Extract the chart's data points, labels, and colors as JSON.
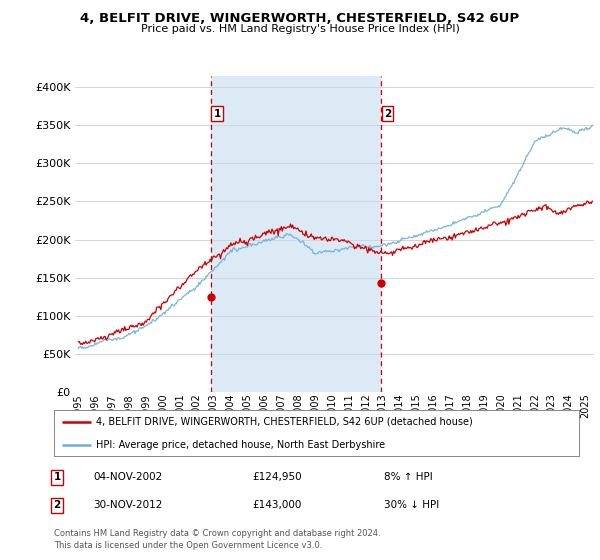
{
  "title": "4, BELFIT DRIVE, WINGERWORTH, CHESTERFIELD, S42 6UP",
  "subtitle": "Price paid vs. HM Land Registry's House Price Index (HPI)",
  "ylabel_ticks": [
    "£0",
    "£50K",
    "£100K",
    "£150K",
    "£200K",
    "£250K",
    "£300K",
    "£350K",
    "£400K"
  ],
  "ytick_values": [
    0,
    50000,
    100000,
    150000,
    200000,
    250000,
    300000,
    350000,
    400000
  ],
  "ylim": [
    0,
    415000
  ],
  "xlim_start": 1994.8,
  "xlim_end": 2025.5,
  "purchase1_x": 2002.84,
  "purchase1_y": 124950,
  "purchase2_x": 2012.92,
  "purchase2_y": 143000,
  "legend_line1": "4, BELFIT DRIVE, WINGERWORTH, CHESTERFIELD, S42 6UP (detached house)",
  "legend_line2": "HPI: Average price, detached house, North East Derbyshire",
  "ann1_date": "04-NOV-2002",
  "ann1_price": "£124,950",
  "ann1_hpi": "8% ↑ HPI",
  "ann2_date": "30-NOV-2012",
  "ann2_price": "£143,000",
  "ann2_hpi": "30% ↓ HPI",
  "footer": "Contains HM Land Registry data © Crown copyright and database right 2024.\nThis data is licensed under the Open Government Licence v3.0.",
  "hpi_color": "#6baed6",
  "hpi_shade": "#c6dcf0",
  "price_color": "#cc0000",
  "vline_color": "#cc0000",
  "grid_color": "#cccccc",
  "bg_color": "#f0f0f0"
}
